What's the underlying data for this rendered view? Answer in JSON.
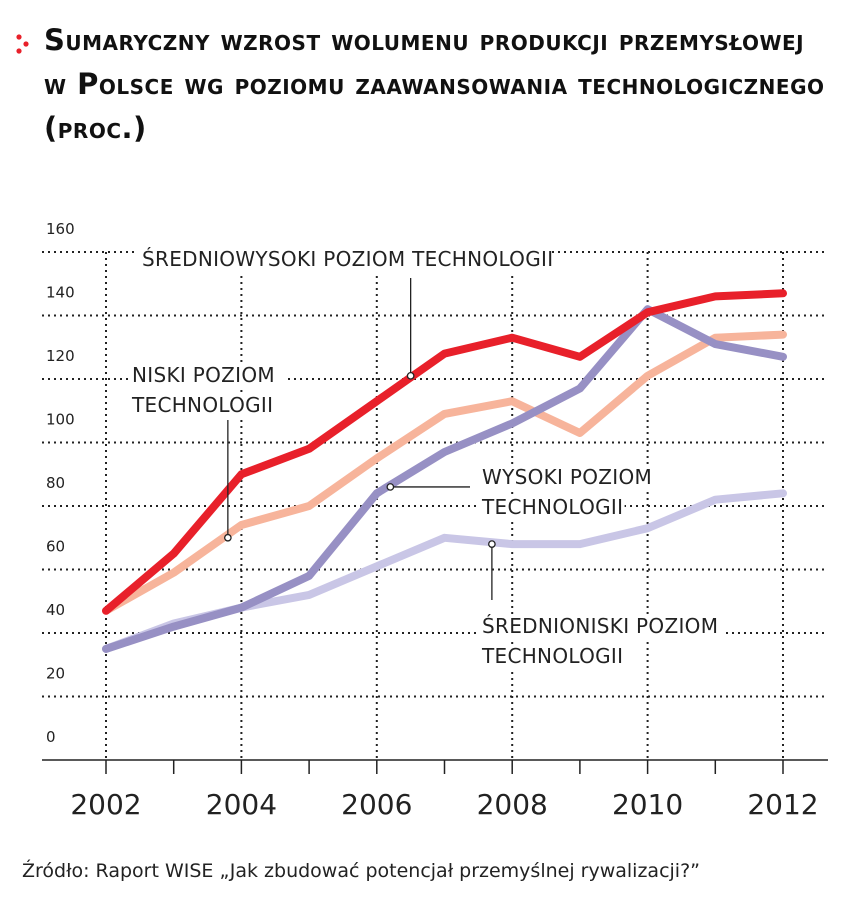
{
  "title": "Sumaryczny wzrost wolumenu produkcji przemysłowej w Polsce wg poziomu zaawansowania technologicznego (proc.)",
  "source": "Źródło: Raport WISE „Jak zbudować potencjał przemyślnej rywalizacji?”",
  "colors": {
    "accent": "#e8202a",
    "srednio_wysoki": "#e8202a",
    "niski": "#f7b49b",
    "wysoki": "#9790c4",
    "srednio_niski": "#c9c6e6"
  },
  "chart_data": {
    "type": "line",
    "x": [
      2002,
      2003,
      2004,
      2005,
      2006,
      2007,
      2008,
      2009,
      2010,
      2011,
      2012
    ],
    "x_tick_labels": [
      "2002",
      "2004",
      "2006",
      "2008",
      "2010",
      "2012"
    ],
    "y_tick_labels": [
      "0",
      "20",
      "40",
      "60",
      "80",
      "100",
      "120",
      "140",
      "160"
    ],
    "ylim": [
      0,
      160
    ],
    "grid": true,
    "series": [
      {
        "name": "ŚREDNIOWYSOKI POZIOM TECHNOLOGII",
        "color": "#e8202a",
        "values": [
          47,
          65,
          90,
          98,
          113,
          128,
          133,
          127,
          141,
          146,
          147
        ]
      },
      {
        "name": "NISKI POZIOM TECHNOLOGII",
        "color": "#f7b49b",
        "values": [
          47,
          59,
          74,
          80,
          95,
          109,
          113,
          103,
          121,
          133,
          134
        ]
      },
      {
        "name": "WYSOKI POZIOM TECHNOLOGII",
        "color": "#9790c4",
        "values": [
          35,
          42,
          48,
          58,
          84,
          97,
          106,
          117,
          142,
          131,
          127
        ]
      },
      {
        "name": "ŚREDNIONISKI POZIOM TECHNOLOGII",
        "color": "#c9c6e6",
        "values": [
          35,
          43,
          48,
          52,
          61,
          70,
          68,
          68,
          73,
          82,
          84
        ]
      }
    ],
    "annotations": [
      {
        "lines": [
          "ŚREDNIOWYSOKI POZIOM TECHNOLOGII"
        ]
      },
      {
        "lines": [
          "NISKI POZIOM",
          "TECHNOLOGII"
        ]
      },
      {
        "lines": [
          "WYSOKI POZIOM",
          "TECHNOLOGII"
        ]
      },
      {
        "lines": [
          "ŚREDNIONISKI POZIOM",
          "TECHNOLOGII"
        ]
      }
    ]
  }
}
